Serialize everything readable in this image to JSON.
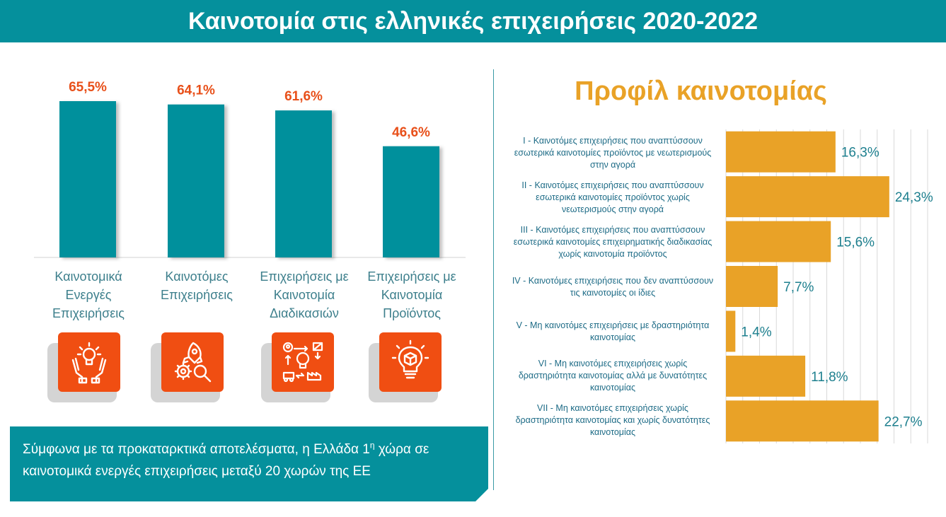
{
  "header": {
    "title": "Καινοτομία στις ελληνικές επιχειρήσεις 2020-2022"
  },
  "left_categories": [
    {
      "label": "Καινοτομικά Ενεργές Επιχειρήσεις",
      "icon": "hands-raised-lightbulb-icon"
    },
    {
      "label": "Καινοτόμες Επιχειρήσεις",
      "icon": "rocket-gear-search-icon"
    },
    {
      "label": "Επιχειρήσεις με Καινοτομία Διαδικασιών",
      "icon": "process-lightbulb-factory-icon"
    },
    {
      "label": "Επιχειρήσεις με Καινοτομία Προϊόντος",
      "icon": "lightbulb-box-icon"
    }
  ],
  "note": {
    "text_before": "Σύμφωνα με τα προκαταρκτικά αποτελέσματα, η Ελλάδα 1",
    "superscript": "η",
    "text_after": " χώρα σε καινοτομικά ενεργές επιχειρήσεις μεταξύ 20 χωρών της ΕΕ"
  },
  "right_title": "Προφίλ καινοτομίας",
  "colors": {
    "teal": "#05909c",
    "orange_label": "#e8501a",
    "gold_bar": "#e9a227",
    "icon_bg": "#f04e12",
    "value_teal": "#1d7f8e"
  },
  "chart_data": [
    {
      "type": "bar",
      "categories": [
        "Καινοτομικά Ενεργές Επιχειρήσεις",
        "Καινοτόμες Επιχειρήσεις",
        "Επιχειρήσεις με Καινοτομία Διαδικασιών",
        "Επιχειρήσεις με Καινοτομία Προϊόντος"
      ],
      "values": [
        65.5,
        64.1,
        61.6,
        46.6
      ],
      "value_labels": [
        "65,5%",
        "64,1%",
        "61,6%",
        "46,6%"
      ],
      "ylim": [
        0,
        100
      ],
      "grid": false
    },
    {
      "type": "bar",
      "orientation": "horizontal",
      "title": "Προφίλ καινοτομίας",
      "categories": [
        "I - Καινοτόμες επιχειρήσεις που αναπτύσσουν εσωτερικά καινοτομίες προϊόντος με νεωτερισμούς στην αγορά",
        "II - Καινοτόμες επιχειρήσεις που αναπτύσσουν εσωτερικά καινοτομίες προϊόντος χωρίς νεωτερισμούς στην αγορά",
        "III - Καινοτόμες επιχειρήσεις που αναπτύσσουν εσωτερικά καινοτομίες επιχειρηματικής διαδικασίας χωρίς καινοτομία προϊόντος",
        "IV - Καινοτόμες επιχειρήσεις που δεν αναπτύσσουν τις καινοτομίες οι ίδιες",
        "V - Μη καινοτόμες επιχειρήσεις με δραστηριότητα καινοτομίας",
        "VI - Μη καινοτόμες επιχειρήσεις χωρίς δραστηριότητα καινοτομίας αλλά με δυνατότητες καινοτομίας",
        "VII - Μη καινοτόμες επιχειρήσεις χωρίς δραστηριότητα καινοτομίας και χωρίς δυνατότητες καινοτομίας"
      ],
      "values": [
        16.3,
        24.3,
        15.6,
        7.7,
        1.4,
        11.8,
        22.7
      ],
      "value_labels": [
        "16,3%",
        "24,3%",
        "15,6%",
        "7,7%",
        "1,4%",
        "11,8%",
        "22,7%"
      ],
      "xlim": [
        0,
        30
      ],
      "grid": true
    }
  ]
}
